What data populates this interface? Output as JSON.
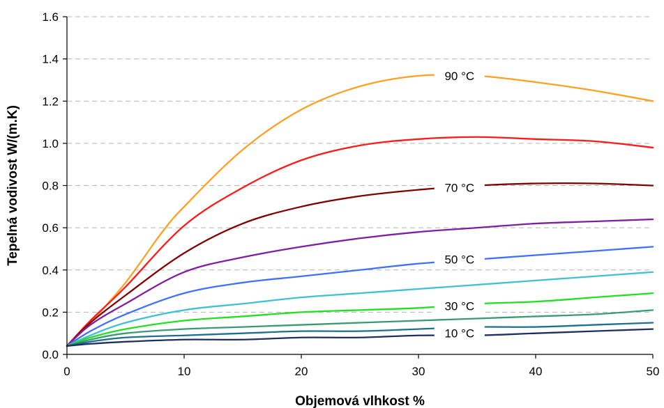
{
  "chart_data": {
    "type": "line",
    "title": "",
    "xlabel": "Objemová vlhkost %",
    "ylabel": "Tepelná vodivost W/(m.K)",
    "xlim": [
      0,
      50
    ],
    "ylim": [
      0,
      1.6
    ],
    "xticks": [
      0,
      10,
      20,
      30,
      40,
      50
    ],
    "yticks": [
      "0.0",
      "0.2",
      "0.4",
      "0.6",
      "0.8",
      "1.0",
      "1.2",
      "1.4",
      "1.6"
    ],
    "grid": "horizontal dashed",
    "legend": "none",
    "curve_labels": [
      {
        "text": "90 °C",
        "x": 33.5,
        "y": 1.32
      },
      {
        "text": "70 °C",
        "x": 33.5,
        "y": 0.79
      },
      {
        "text": "50 °C",
        "x": 33.5,
        "y": 0.45
      },
      {
        "text": "30 °C",
        "x": 33.5,
        "y": 0.23
      },
      {
        "text": "10 °C",
        "x": 33.5,
        "y": 0.1
      }
    ],
    "series": [
      {
        "color": "#ffa020",
        "x": [
          0,
          2,
          5,
          8,
          10,
          15,
          20,
          25,
          30,
          35,
          40,
          45,
          50
        ],
        "y": [
          0.04,
          0.15,
          0.34,
          0.57,
          0.7,
          0.97,
          1.16,
          1.27,
          1.32,
          1.32,
          1.29,
          1.25,
          1.2
        ]
      },
      {
        "color": "#ff1a1a",
        "x": [
          0,
          2,
          5,
          10,
          15,
          20,
          25,
          30,
          35,
          40,
          45,
          50
        ],
        "y": [
          0.04,
          0.16,
          0.32,
          0.61,
          0.79,
          0.92,
          0.99,
          1.02,
          1.03,
          1.02,
          1.01,
          0.98
        ]
      },
      {
        "color": "#800000",
        "x": [
          0,
          2,
          5,
          10,
          15,
          20,
          25,
          30,
          35,
          40,
          45,
          50
        ],
        "y": [
          0.04,
          0.15,
          0.28,
          0.48,
          0.62,
          0.7,
          0.75,
          0.78,
          0.8,
          0.81,
          0.81,
          0.8
        ]
      },
      {
        "color": "#7f1f9f",
        "x": [
          0,
          2,
          5,
          10,
          15,
          20,
          25,
          30,
          35,
          40,
          45,
          50
        ],
        "y": [
          0.04,
          0.14,
          0.24,
          0.39,
          0.46,
          0.51,
          0.55,
          0.58,
          0.6,
          0.62,
          0.63,
          0.64
        ]
      },
      {
        "color": "#3f6fff",
        "x": [
          0,
          2,
          5,
          10,
          15,
          20,
          25,
          30,
          35,
          40,
          45,
          50
        ],
        "y": [
          0.04,
          0.11,
          0.19,
          0.29,
          0.34,
          0.37,
          0.4,
          0.43,
          0.45,
          0.47,
          0.49,
          0.51
        ]
      },
      {
        "color": "#40c0d0",
        "x": [
          0,
          2,
          5,
          10,
          15,
          20,
          25,
          30,
          35,
          40,
          45,
          50
        ],
        "y": [
          0.04,
          0.09,
          0.15,
          0.21,
          0.24,
          0.27,
          0.29,
          0.31,
          0.33,
          0.35,
          0.37,
          0.39
        ]
      },
      {
        "color": "#20e020",
        "x": [
          0,
          2,
          5,
          10,
          15,
          20,
          25,
          30,
          35,
          40,
          45,
          50
        ],
        "y": [
          0.04,
          0.08,
          0.12,
          0.16,
          0.18,
          0.2,
          0.21,
          0.22,
          0.24,
          0.25,
          0.27,
          0.29
        ]
      },
      {
        "color": "#3a9a70",
        "x": [
          0,
          2,
          5,
          10,
          15,
          20,
          25,
          30,
          35,
          40,
          45,
          50
        ],
        "y": [
          0.04,
          0.07,
          0.1,
          0.12,
          0.13,
          0.14,
          0.15,
          0.16,
          0.17,
          0.18,
          0.19,
          0.21
        ]
      },
      {
        "color": "#1f6f8f",
        "x": [
          0,
          2,
          5,
          10,
          15,
          20,
          25,
          30,
          35,
          40,
          45,
          50
        ],
        "y": [
          0.04,
          0.06,
          0.08,
          0.09,
          0.1,
          0.11,
          0.11,
          0.12,
          0.13,
          0.13,
          0.14,
          0.15
        ]
      },
      {
        "color": "#1f2f5f",
        "x": [
          0,
          2,
          5,
          10,
          15,
          20,
          25,
          30,
          35,
          40,
          45,
          50
        ],
        "y": [
          0.04,
          0.05,
          0.06,
          0.07,
          0.07,
          0.08,
          0.08,
          0.09,
          0.09,
          0.1,
          0.11,
          0.12
        ]
      }
    ]
  }
}
